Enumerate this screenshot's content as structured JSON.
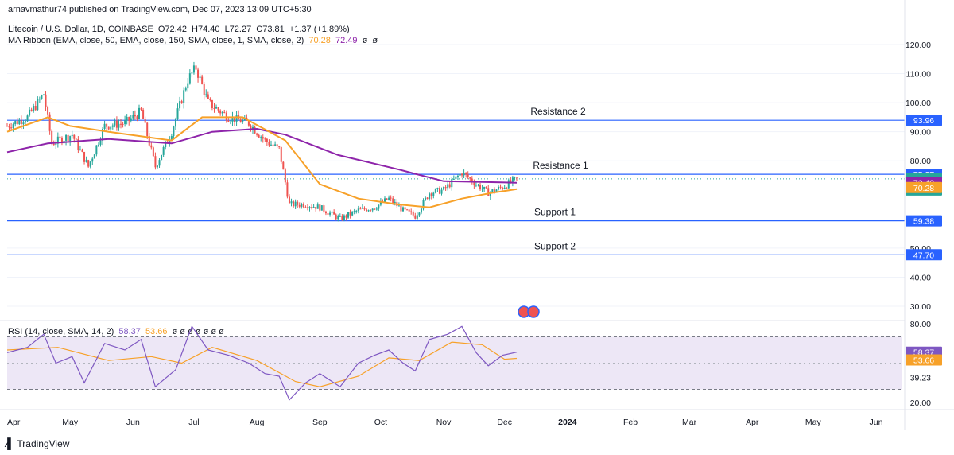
{
  "publisher": "arnavmathur74 published on TradingView.com, Dec 07, 2023 13:09 UTC+5:30",
  "symbol": {
    "name": "Litecoin / U.S. Dollar, 1D, COINBASE",
    "open": "O72.42",
    "high": "H74.40",
    "low": "L72.27",
    "close": "C73.81",
    "change": "+1.37 (+1.89%)"
  },
  "ma_ribbon": {
    "label": "MA Ribbon (EMA, close, 50, EMA, close, 150, SMA, close, 1, SMA, close, 2)",
    "v1": "70.28",
    "v2": "72.49",
    "v3": "ø",
    "v4": "ø"
  },
  "rsi": {
    "label": "RSI (14, close, SMA, 14, 2)",
    "v1": "58.37",
    "v2": "53.66",
    "rest": "ø ø ø ø ø ø ø"
  },
  "footer_logo": "TradingView",
  "colors": {
    "up": "#26a69a",
    "down": "#ef5350",
    "ema50": "#f7a129",
    "ema150": "#8e24aa",
    "level_line": "#2962ff",
    "rsi_line": "#7e57c2",
    "rsi_ma": "#f7a129",
    "rsi_band": "#ede7f6"
  },
  "chart_data": {
    "type": "candlestick",
    "price_axis": {
      "ticks": [
        120,
        110,
        100,
        90,
        80,
        50,
        40,
        30
      ],
      "range": [
        25,
        124
      ]
    },
    "x_axis_labels": [
      "Apr",
      "May",
      "Jun",
      "Jul",
      "Aug",
      "Sep",
      "Oct",
      "Nov",
      "Dec",
      "2024",
      "Feb",
      "Mar",
      "Apr",
      "May",
      "Jun"
    ],
    "levels": [
      {
        "name": "Resistance 2",
        "value": 93.96,
        "tag": "93.96"
      },
      {
        "name": "Resistance 1",
        "value": 75.37,
        "tag": "75.37"
      },
      {
        "name": "Support 1",
        "value": 59.38,
        "tag": "59.38"
      },
      {
        "name": "Support 2",
        "value": 47.7,
        "tag": "47.70"
      }
    ],
    "last_price": {
      "value": 73.81,
      "tag": "73.81",
      "countdown": "16:21:00"
    },
    "ma_tags": [
      {
        "value": 72.49,
        "tag": "72.49"
      },
      {
        "value": 70.28,
        "tag": "70.28"
      }
    ],
    "close_path": [
      [
        "2023-03-31",
        92
      ],
      [
        "2023-04-10",
        95
      ],
      [
        "2023-04-18",
        103
      ],
      [
        "2023-04-22",
        86
      ],
      [
        "2023-05-02",
        89
      ],
      [
        "2023-05-10",
        78
      ],
      [
        "2023-05-18",
        92
      ],
      [
        "2023-05-28",
        93
      ],
      [
        "2023-06-05",
        97
      ],
      [
        "2023-06-12",
        78
      ],
      [
        "2023-06-20",
        90
      ],
      [
        "2023-06-28",
        108
      ],
      [
        "2023-07-02",
        112
      ],
      [
        "2023-07-08",
        100
      ],
      [
        "2023-07-18",
        95
      ],
      [
        "2023-07-28",
        93
      ],
      [
        "2023-08-05",
        87
      ],
      [
        "2023-08-12",
        84
      ],
      [
        "2023-08-17",
        65
      ],
      [
        "2023-08-25",
        65
      ],
      [
        "2023-09-01",
        64
      ],
      [
        "2023-09-11",
        60
      ],
      [
        "2023-09-20",
        63
      ],
      [
        "2023-09-28",
        64
      ],
      [
        "2023-10-05",
        67
      ],
      [
        "2023-10-12",
        63
      ],
      [
        "2023-10-18",
        61
      ],
      [
        "2023-10-25",
        69
      ],
      [
        "2023-11-01",
        70
      ],
      [
        "2023-11-10",
        76
      ],
      [
        "2023-11-17",
        72
      ],
      [
        "2023-11-23",
        69
      ],
      [
        "2023-11-30",
        71
      ],
      [
        "2023-12-07",
        73.81
      ]
    ],
    "ema50_path": [
      [
        "2023-03-31",
        90
      ],
      [
        "2023-04-20",
        95
      ],
      [
        "2023-05-01",
        92
      ],
      [
        "2023-05-20",
        90
      ],
      [
        "2023-06-20",
        87
      ],
      [
        "2023-07-05",
        95
      ],
      [
        "2023-07-25",
        95
      ],
      [
        "2023-08-15",
        87
      ],
      [
        "2023-09-01",
        72
      ],
      [
        "2023-09-20",
        67
      ],
      [
        "2023-10-10",
        65
      ],
      [
        "2023-10-25",
        64
      ],
      [
        "2023-11-10",
        67
      ],
      [
        "2023-11-25",
        69
      ],
      [
        "2023-12-07",
        70.28
      ]
    ],
    "ema150_path": [
      [
        "2023-03-31",
        83
      ],
      [
        "2023-04-20",
        86
      ],
      [
        "2023-05-20",
        87.5
      ],
      [
        "2023-06-20",
        86
      ],
      [
        "2023-07-10",
        90
      ],
      [
        "2023-08-01",
        91
      ],
      [
        "2023-08-15",
        89
      ],
      [
        "2023-09-10",
        82
      ],
      [
        "2023-10-10",
        77
      ],
      [
        "2023-11-01",
        73
      ],
      [
        "2023-12-07",
        72.49
      ]
    ],
    "rsi_axis": {
      "ticks": [
        80,
        54.74,
        39.23,
        20
      ],
      "range": [
        18,
        82
      ],
      "band": [
        30,
        70
      ]
    },
    "rsi_path": [
      [
        "2023-03-31",
        58
      ],
      [
        "2023-04-10",
        62
      ],
      [
        "2023-04-18",
        72
      ],
      [
        "2023-04-24",
        50
      ],
      [
        "2023-05-02",
        55
      ],
      [
        "2023-05-08",
        35
      ],
      [
        "2023-05-18",
        65
      ],
      [
        "2023-05-28",
        60
      ],
      [
        "2023-06-05",
        68
      ],
      [
        "2023-06-12",
        32
      ],
      [
        "2023-06-22",
        45
      ],
      [
        "2023-06-30",
        78
      ],
      [
        "2023-07-08",
        60
      ],
      [
        "2023-07-18",
        56
      ],
      [
        "2023-07-28",
        50
      ],
      [
        "2023-08-05",
        42
      ],
      [
        "2023-08-12",
        40
      ],
      [
        "2023-08-17",
        22
      ],
      [
        "2023-08-25",
        35
      ],
      [
        "2023-09-01",
        42
      ],
      [
        "2023-09-11",
        32
      ],
      [
        "2023-09-20",
        50
      ],
      [
        "2023-09-28",
        56
      ],
      [
        "2023-10-05",
        60
      ],
      [
        "2023-10-12",
        50
      ],
      [
        "2023-10-18",
        44
      ],
      [
        "2023-10-25",
        68
      ],
      [
        "2023-11-03",
        72
      ],
      [
        "2023-11-10",
        78
      ],
      [
        "2023-11-17",
        58
      ],
      [
        "2023-11-23",
        48
      ],
      [
        "2023-11-30",
        56
      ],
      [
        "2023-12-07",
        58.37
      ]
    ],
    "rsi_ma_path": [
      [
        "2023-03-31",
        60
      ],
      [
        "2023-04-25",
        62
      ],
      [
        "2023-05-20",
        52
      ],
      [
        "2023-06-10",
        55
      ],
      [
        "2023-06-25",
        50
      ],
      [
        "2023-07-10",
        62
      ],
      [
        "2023-08-01",
        52
      ],
      [
        "2023-08-20",
        36
      ],
      [
        "2023-09-01",
        32
      ],
      [
        "2023-09-20",
        40
      ],
      [
        "2023-10-05",
        54
      ],
      [
        "2023-10-20",
        52
      ],
      [
        "2023-11-05",
        66
      ],
      [
        "2023-11-20",
        64
      ],
      [
        "2023-12-01",
        53
      ],
      [
        "2023-12-07",
        53.66
      ]
    ],
    "rsi_tags": [
      {
        "value": 58.37,
        "tag": "58.37"
      },
      {
        "value": 53.66,
        "tag": "53.66"
      }
    ]
  }
}
